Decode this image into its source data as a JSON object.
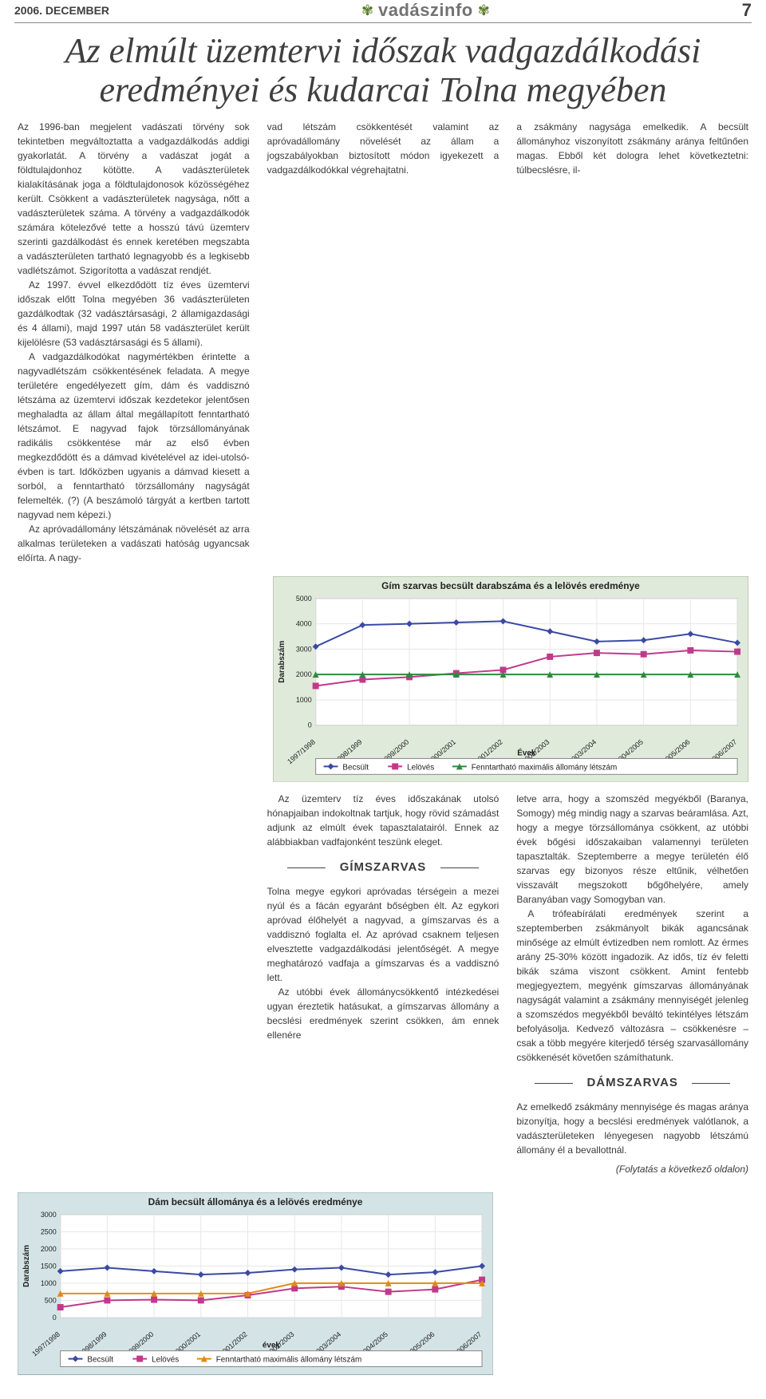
{
  "header": {
    "date": "2006. DECEMBER",
    "brand": "vadászinfo",
    "page_number": "7"
  },
  "article": {
    "title": "Az elmúlt üzemtervi időszak vadgazdálkodási eredményei  és kudarcai Tolna megyében",
    "col1": {
      "p1": "Az 1996-ban megjelent vadászati törvény sok tekintetben megváltoztatta a vadgazdálkodás addigi gyakorlatát. A törvény a vadászat jogát a földtulajdonhoz kötötte. A vadászterületek kialakításának joga a földtulajdonosok közösségéhez került. Csökkent a vadászterületek nagysága, nőtt a vadászterületek száma. A törvény a vadgazdálkodók számára kötelezővé tette a hosszú távú üzemterv szerinti gazdálkodást és ennek keretében megszabta a vadászterületen tartható legnagyobb és a legkisebb vadlétszámot. Szigorította a vadászat rendjét.",
      "p2": "Az 1997. évvel elkezdődött tíz éves üzemtervi időszak előtt Tolna megyében 36 vadászterületen gazdálkodtak (32 vadásztársasági, 2 államigazdasági és 4 állami), majd 1997 után 58 vadászterület került kijelölésre (53 vadásztársasági és 5 állami).",
      "p3": "A vadgazdálkodókat nagymértékben érintette a nagyvadlétszám csökkentésének feladata. A megye területére engedélyezett gím, dám és vaddisznó létszáma az üzemtervi időszak kezdetekor jelentősen meghaladta az állam által megállapított fenntartható létszámot. E nagyvad fajok törzsállományának radikális csökkentése már az első évben megkezdődött és a dámvad kivételével az idei-utolsó-évben is tart. Időközben ugyanis a dámvad kiesett a sorból, a fenntartható törzsállomány nagyságát felemelték. (?) (A beszámoló tárgyát a kertben tartott nagyvad nem képezi.)",
      "p4": "Az apróvadállomány létszámának növelését az arra alkalmas területeken a vadászati hatóság ugyancsak előírta. A nagy-"
    },
    "col2": {
      "p1": "vad létszám csökkentését valamint az apróvadállomány növelését az állam a jogszabályokban biztosított módon igyekezett a vadgazdálkodókkal végrehajtatni.",
      "p2": "Az üzemterv tíz éves időszakának utolsó hónapjaiban indokoltnak tartjuk, hogy rövid számadást adjunk az elmúlt évek tapasztalatairól. Ennek az alábbiakban vadfajonként teszünk eleget.",
      "sub1": "GÍMSZARVAS",
      "p3": "Tolna megye egykori apróvadas térségein a mezei nyúl és a fácán egyaránt bőségben élt. Az egykori apróvad élőhelyét a nagyvad, a gímszarvas és a vaddisznó foglalta el. Az apróvad csaknem teljesen elvesztette vadgazdálkodási jelentőségét. A megye meghatározó vadfaja a gímszarvas és a vaddisznó lett.",
      "p4": "Az utóbbi évek állománycsökkentő intézkedései ugyan éreztetik hatásukat, a gímszarvas állomány a becslési eredmények szerint csökken, ám ennek ellenére"
    },
    "col3": {
      "p1": "a zsákmány nagysága  emelkedik. A becsült állományhoz viszonyított zsákmány aránya feltűnően magas. Ebből két dologra lehet következtetni: túlbecslésre, il-",
      "p2": "letve arra, hogy a szomszéd megyékből (Baranya, Somogy) még mindig nagy a szarvas beáramlása. Azt, hogy a megye törzsállománya csökkent, az utóbbi évek bőgési időszakaiban valamennyi területen tapasztalták. Szeptemberre a megye területén élő szarvas egy bizonyos része eltűnik, vélhetően visszavált megszokott bőgőhelyére, amely Baranyában vagy Somogyban van.",
      "p3": "A trófeabírálati eredmények szerint a szeptemberben zsákmányolt bikák agancsának minősége az elmúlt évtizedben nem romlott. Az érmes arány 25-30% között ingadozik. Az idős, tíz év feletti bikák száma viszont csökkent. Amint fentebb megjegyeztem, megyénk gímszarvas állományának nagyságát valamint a zsákmány mennyiségét jelenleg a  szomszédos megyékből beváltó tekintélyes létszám befolyásolja. Kedvező változásra – csökkenésre – csak a több megyére kiterjedő térség szarvasállomány csökkenését követően számíthatunk.",
      "sub2": "DÁMSZARVAS",
      "p4": "Az emelkedő zsákmány mennyisége és magas aránya bizonyítja, hogy a becslési eredmények valótlanok, a vadászterületeken lényegesen nagyobb létszámú állomány él a bevallottnál.",
      "cont": "(Folytatás a következő oldalon)"
    }
  },
  "chart1": {
    "type": "line",
    "title": "Gím szarvas becsült darabszáma és a lelövés eredménye",
    "background_color": "#e0eadb",
    "plot_bg": "#ffffff",
    "grid_color": "#e7e7e7",
    "border_color": "#9cab8f",
    "x_label": "Évek",
    "y_label": "Darabszám",
    "categories": [
      "1997/1998",
      "1998/1999",
      "1999/2000",
      "2000/2001",
      "2001/2002",
      "2002/2003",
      "2003/2004",
      "2004/2005",
      "2005/2006",
      "2006/2007"
    ],
    "y_ticks": [
      0,
      1000,
      2000,
      3000,
      4000,
      5000
    ],
    "ylim": [
      0,
      5000
    ],
    "series": [
      {
        "name": "Becsült",
        "color": "#3a4aa3",
        "marker": "diamond",
        "values": [
          3100,
          3950,
          4000,
          4050,
          4100,
          3700,
          3300,
          3350,
          3600,
          3250
        ]
      },
      {
        "name": "Lelövés",
        "color": "#c03a8a",
        "marker": "square",
        "values": [
          1550,
          1800,
          1900,
          2050,
          2180,
          2700,
          2850,
          2800,
          2950,
          2900
        ]
      },
      {
        "name": "Fenntartható maximális állomány létszám",
        "color": "#2f8a3f",
        "marker": "triangle",
        "values": [
          2000,
          2000,
          2000,
          2000,
          2000,
          2000,
          2000,
          2000,
          2000,
          2000
        ]
      }
    ],
    "title_fontsize": 12,
    "label_fontsize": 10
  },
  "chart2": {
    "type": "line",
    "title": "Dám becsült állománya és a lelövés eredménye",
    "background_color": "#d4e4e6",
    "plot_bg": "#ffffff",
    "grid_color": "#e7e7e7",
    "border_color": "#95aeb1",
    "x_label": "évek",
    "y_label": "Darabszám",
    "categories": [
      "1997/1998",
      "1998/1999",
      "1999/2000",
      "2000/2001",
      "2001/2002",
      "2002/2003",
      "2003/2004",
      "2004/2005",
      "2005/2006",
      "2006/2007"
    ],
    "y_ticks": [
      0,
      500,
      1000,
      1500,
      2000,
      2500,
      3000
    ],
    "ylim": [
      0,
      3000
    ],
    "series": [
      {
        "name": "Becsült",
        "color": "#3a4aa3",
        "marker": "diamond",
        "values": [
          1350,
          1450,
          1350,
          1250,
          1300,
          1400,
          1450,
          1250,
          1320,
          1500
        ]
      },
      {
        "name": "Lelövés",
        "color": "#c03a8a",
        "marker": "square",
        "values": [
          300,
          500,
          520,
          500,
          650,
          850,
          900,
          750,
          820,
          1100
        ]
      },
      {
        "name": "Fenntartható maximális állomány létszám",
        "color": "#e08a12",
        "marker": "triangle",
        "values": [
          700,
          700,
          700,
          700,
          700,
          1000,
          1000,
          1000,
          1000,
          1000
        ]
      }
    ],
    "title_fontsize": 12,
    "label_fontsize": 10
  }
}
